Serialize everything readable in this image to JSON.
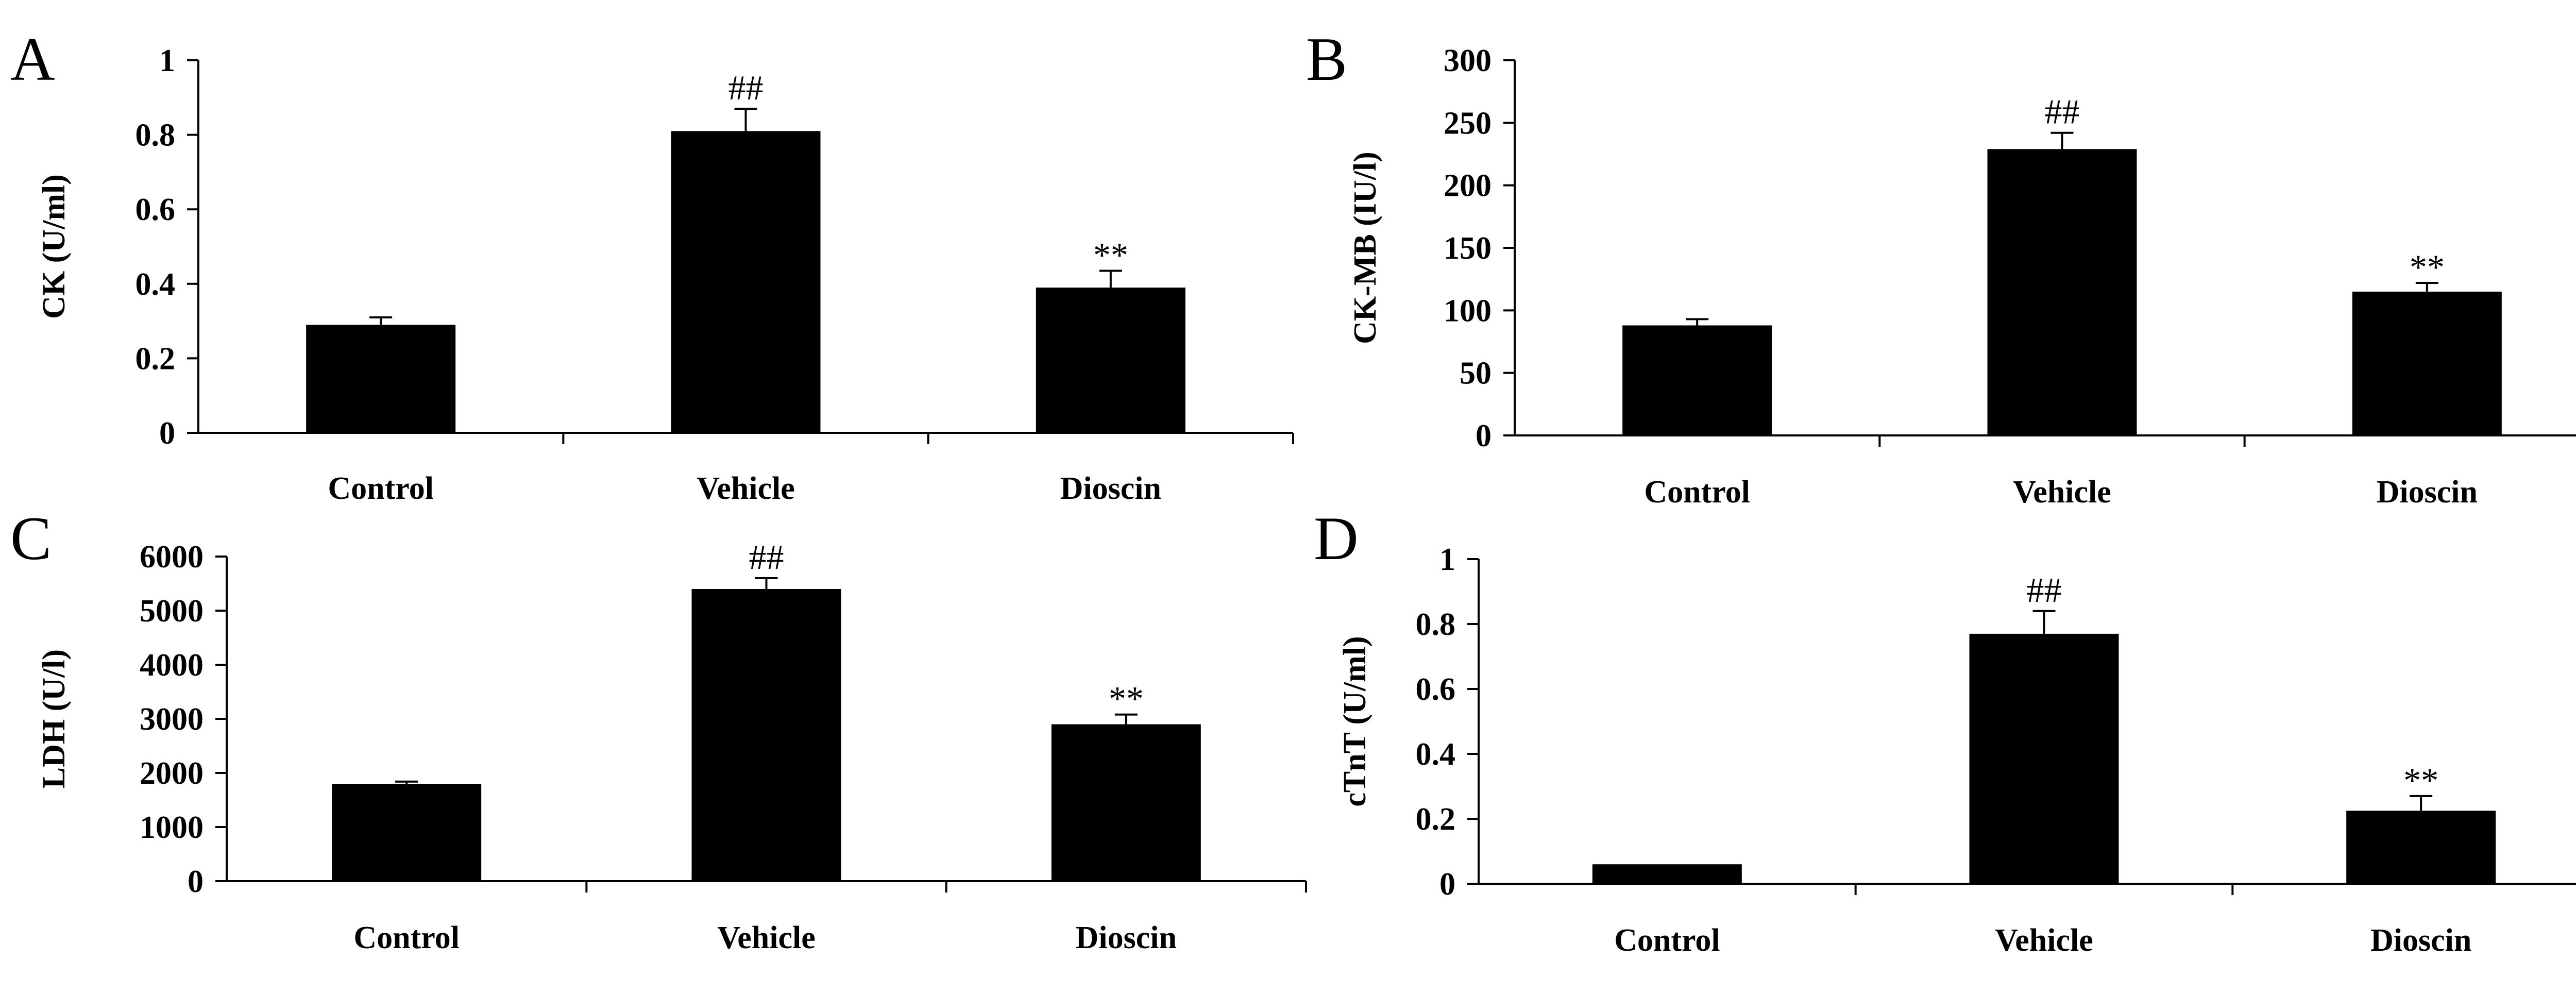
{
  "chart_data": [
    {
      "id": "A",
      "type": "bar",
      "panel_label": "A",
      "title": "",
      "xlabel": "",
      "ylabel": "CK (U/ml)",
      "categories": [
        "Control",
        "Vehicle",
        "Dioscin"
      ],
      "values": [
        0.29,
        0.81,
        0.39
      ],
      "errors": [
        0.02,
        0.06,
        0.045
      ],
      "annotations": [
        "",
        "##",
        "**"
      ],
      "yticks": [
        "0",
        "0.2",
        "0.4",
        "0.6",
        "0.8",
        "1"
      ],
      "ylim": [
        0,
        1
      ],
      "grid": false
    },
    {
      "id": "B",
      "type": "bar",
      "panel_label": "B",
      "title": "",
      "xlabel": "",
      "ylabel": "CK-MB (IU/l)",
      "categories": [
        "Control",
        "Vehicle",
        "Dioscin"
      ],
      "values": [
        88,
        229,
        115
      ],
      "errors": [
        5,
        13,
        7
      ],
      "annotations": [
        "",
        "##",
        "**"
      ],
      "yticks": [
        "0",
        "50",
        "100",
        "150",
        "200",
        "250",
        "300"
      ],
      "ylim": [
        0,
        300
      ],
      "grid": false
    },
    {
      "id": "C",
      "type": "bar",
      "panel_label": "C",
      "title": "",
      "xlabel": "",
      "ylabel": "LDH (U/l)",
      "categories": [
        "Control",
        "Vehicle",
        "Dioscin"
      ],
      "values": [
        1800,
        5400,
        2900
      ],
      "errors": [
        40,
        200,
        180
      ],
      "annotations": [
        "",
        "##",
        "**"
      ],
      "yticks": [
        "0",
        "1000",
        "2000",
        "3000",
        "4000",
        "5000",
        "6000"
      ],
      "ylim": [
        0,
        6000
      ],
      "grid": false
    },
    {
      "id": "D",
      "type": "bar",
      "panel_label": "D",
      "title": "",
      "xlabel": "",
      "ylabel": "cTnT (U/ml)",
      "categories": [
        "Control",
        "Vehicle",
        "Dioscin"
      ],
      "values": [
        0.06,
        0.77,
        0.225
      ],
      "errors": [
        0,
        0.07,
        0.045
      ],
      "annotations": [
        "",
        "##",
        "**"
      ],
      "yticks": [
        "0",
        "0.2",
        "0.4",
        "0.6",
        "0.8",
        "1"
      ],
      "ylim": [
        0,
        1
      ],
      "grid": false
    }
  ]
}
